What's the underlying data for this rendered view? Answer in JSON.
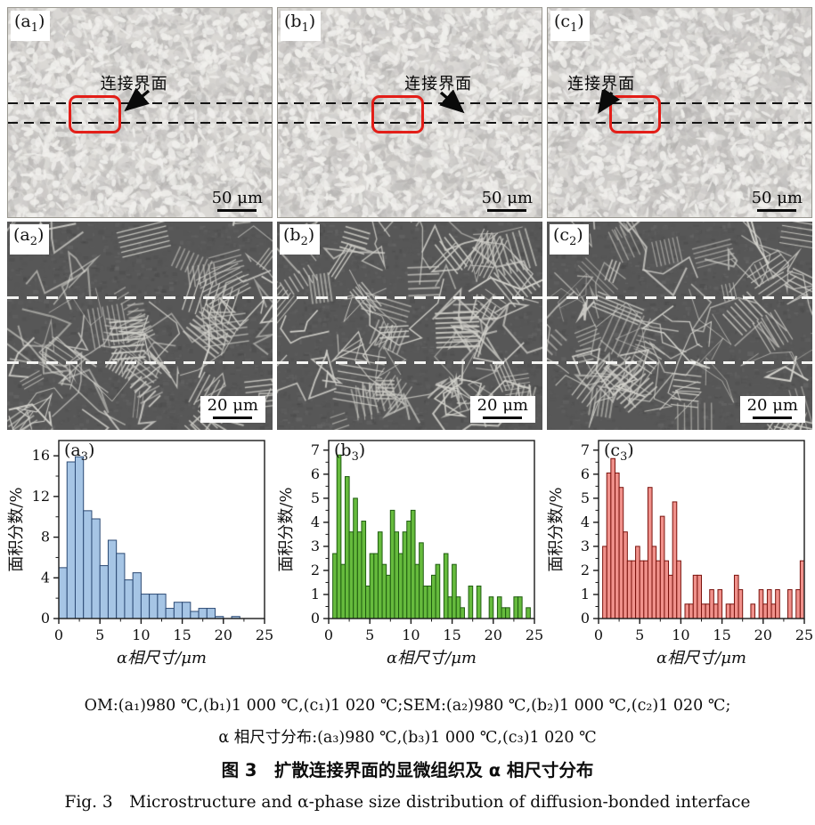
{
  "figure": {
    "caption_line1": "OM:(a₁)980 ℃,(b₁)1 000 ℃,(c₁)1 020 ℃;SEM:(a₂)980 ℃,(b₂)1 000 ℃,(c₂)1 020 ℃;",
    "caption_line2": "α 相尺寸分布:(a₃)980 ℃,(b₃)1 000 ℃,(c₃)1 020 ℃",
    "title_zh": "图 3　扩散连接界面的显微组织及 α 相尺寸分布",
    "title_en": "Fig. 3　Microstructure and α-phase size distribution of diffusion-bonded interface"
  },
  "panels": {
    "om": [
      {
        "label": {
          "pre": "(a",
          "sub": "1",
          "post": ")"
        },
        "annotation": "连接界面",
        "scale_bar": "50 μm"
      },
      {
        "label": {
          "pre": "(b",
          "sub": "1",
          "post": ")"
        },
        "annotation": "连接界面",
        "scale_bar": "50 μm"
      },
      {
        "label": {
          "pre": "(c",
          "sub": "1",
          "post": ")"
        },
        "annotation": "连接界面",
        "scale_bar": "50 μm"
      }
    ],
    "sem": [
      {
        "label": {
          "pre": "(a",
          "sub": "2",
          "post": ")"
        },
        "scale_bar": "20 μm"
      },
      {
        "label": {
          "pre": "(b",
          "sub": "2",
          "post": ")"
        },
        "scale_bar": "20 μm"
      },
      {
        "label": {
          "pre": "(c",
          "sub": "2",
          "post": ")"
        },
        "scale_bar": "20 μm"
      }
    ]
  },
  "chart_data": [
    {
      "type": "bar",
      "id": "a3",
      "label": {
        "pre": "(a",
        "sub": "3",
        "post": ")"
      },
      "xlabel": "α相尺寸/μm",
      "ylabel": "面积分数/%",
      "xlim": [
        0,
        25
      ],
      "ylim": [
        0,
        17.5
      ],
      "xticks": [
        0,
        5,
        10,
        15,
        20,
        25
      ],
      "yticks": [
        0,
        4,
        8,
        12,
        16
      ],
      "x_minor": 2.5,
      "y_minor": 2,
      "bin_width": 1,
      "fill": "#a6c5e5",
      "edge": "#2c4a74",
      "bars": [
        [
          0,
          5.0
        ],
        [
          1,
          15.4
        ],
        [
          2,
          15.9
        ],
        [
          3,
          10.6
        ],
        [
          4,
          9.8
        ],
        [
          5,
          5.2
        ],
        [
          6,
          7.7
        ],
        [
          7,
          6.4
        ],
        [
          8,
          3.8
        ],
        [
          9,
          4.5
        ],
        [
          10,
          2.4
        ],
        [
          11,
          2.4
        ],
        [
          12,
          2.4
        ],
        [
          13,
          1.0
        ],
        [
          14,
          1.6
        ],
        [
          15,
          1.6
        ],
        [
          16,
          0.7
        ],
        [
          17,
          1.0
        ],
        [
          18,
          1.0
        ],
        [
          19,
          0.2
        ],
        [
          21,
          0.2
        ]
      ]
    },
    {
      "type": "bar",
      "id": "b3",
      "label": {
        "pre": "(b",
        "sub": "3",
        "post": ")"
      },
      "xlabel": "α相尺寸/μm",
      "ylabel": "面积分数/%",
      "xlim": [
        0,
        25
      ],
      "ylim": [
        0,
        7.4
      ],
      "xticks": [
        0,
        5,
        10,
        15,
        20,
        25
      ],
      "yticks": [
        0,
        1,
        2,
        3,
        4,
        5,
        6,
        7
      ],
      "x_minor": 2.5,
      "y_minor": 0.5,
      "bin_width": 0.5,
      "fill": "#66bb3d",
      "edge": "#1f5c10",
      "bars": [
        [
          0.5,
          2.7
        ],
        [
          1,
          6.8
        ],
        [
          1.5,
          2.25
        ],
        [
          2,
          5.9
        ],
        [
          2.5,
          3.6
        ],
        [
          3,
          5.0
        ],
        [
          3.5,
          3.6
        ],
        [
          4,
          4.05
        ],
        [
          4.5,
          1.35
        ],
        [
          5,
          2.7
        ],
        [
          5.5,
          2.7
        ],
        [
          6,
          3.6
        ],
        [
          6.5,
          2.25
        ],
        [
          7,
          1.8
        ],
        [
          7.5,
          4.5
        ],
        [
          8,
          3.6
        ],
        [
          8.5,
          2.7
        ],
        [
          9,
          3.6
        ],
        [
          9.5,
          4.05
        ],
        [
          10,
          4.5
        ],
        [
          10.5,
          2.25
        ],
        [
          11,
          3.15
        ],
        [
          11.5,
          1.35
        ],
        [
          12,
          1.35
        ],
        [
          12.5,
          1.8
        ],
        [
          13,
          2.25
        ],
        [
          14,
          2.7
        ],
        [
          14.5,
          0.9
        ],
        [
          15,
          2.25
        ],
        [
          15.5,
          0.9
        ],
        [
          16,
          0.45
        ],
        [
          17,
          1.35
        ],
        [
          18,
          1.35
        ],
        [
          19.5,
          0.9
        ],
        [
          20.5,
          0.9
        ],
        [
          21,
          0.45
        ],
        [
          21.5,
          0.45
        ],
        [
          22.5,
          0.9
        ],
        [
          23,
          0.9
        ],
        [
          24,
          0.45
        ]
      ]
    },
    {
      "type": "bar",
      "id": "c3",
      "label": {
        "pre": "(c",
        "sub": "3",
        "post": ")"
      },
      "xlabel": "α相尺寸/μm",
      "ylabel": "面积分数/%",
      "xlim": [
        0,
        25
      ],
      "ylim": [
        0,
        7.4
      ],
      "xticks": [
        0,
        5,
        10,
        15,
        20,
        25
      ],
      "yticks": [
        0,
        1,
        2,
        3,
        4,
        5,
        6,
        7
      ],
      "x_minor": 2.5,
      "y_minor": 0.5,
      "bin_width": 0.5,
      "fill": "#f0918b",
      "edge": "#7a120c",
      "bars": [
        [
          0.5,
          3.0
        ],
        [
          1,
          6.05
        ],
        [
          1.5,
          6.65
        ],
        [
          2,
          6.05
        ],
        [
          2.5,
          5.45
        ],
        [
          3,
          3.6
        ],
        [
          3.5,
          2.4
        ],
        [
          4,
          2.4
        ],
        [
          4.5,
          3.0
        ],
        [
          5,
          2.4
        ],
        [
          5.5,
          2.4
        ],
        [
          6,
          5.45
        ],
        [
          6.5,
          3.0
        ],
        [
          7,
          2.4
        ],
        [
          7.5,
          4.25
        ],
        [
          8,
          2.4
        ],
        [
          8.5,
          1.8
        ],
        [
          9,
          4.85
        ],
        [
          9.5,
          2.4
        ],
        [
          10.5,
          0.6
        ],
        [
          11,
          0.6
        ],
        [
          11.5,
          1.8
        ],
        [
          12,
          1.8
        ],
        [
          12.5,
          0.6
        ],
        [
          13,
          0.6
        ],
        [
          13.5,
          1.2
        ],
        [
          14,
          0.6
        ],
        [
          14.5,
          1.2
        ],
        [
          15.5,
          0.6
        ],
        [
          16,
          0.6
        ],
        [
          16.5,
          1.8
        ],
        [
          17,
          1.2
        ],
        [
          18.5,
          0.6
        ],
        [
          19.5,
          1.2
        ],
        [
          20,
          0.6
        ],
        [
          20.5,
          1.2
        ],
        [
          21,
          0.6
        ],
        [
          21.5,
          1.2
        ],
        [
          23,
          1.2
        ],
        [
          24,
          1.2
        ],
        [
          24.5,
          2.4
        ]
      ]
    }
  ],
  "style": {
    "annotation_color": "#0a0a0a",
    "interface_box_color": "#e31e18",
    "om_background": "#dbd9d5",
    "sem_background": "#575757"
  }
}
